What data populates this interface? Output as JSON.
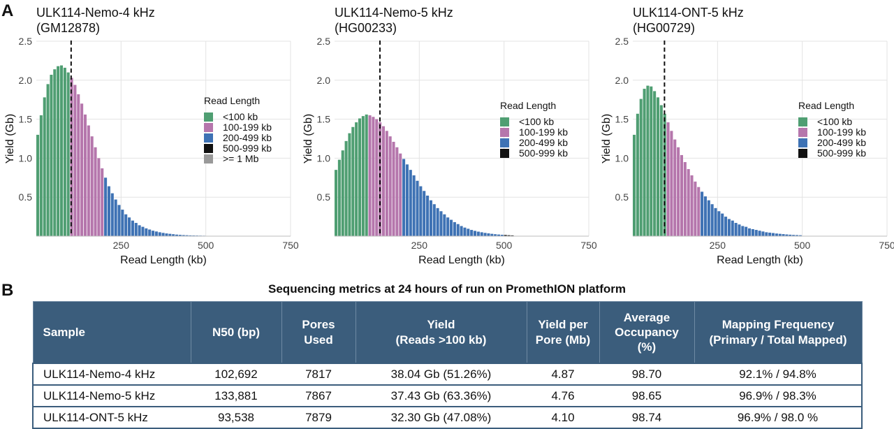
{
  "panel_labels": {
    "a": "A",
    "b": "B"
  },
  "chart_data": [
    {
      "type": "bar",
      "title": "ULK114-Nemo-4 kHz",
      "subtitle": "(GM12878)",
      "xlabel": "Read Length (kb)",
      "ylabel": "Yield (Gb)",
      "xlim": [
        0,
        750
      ],
      "ylim": [
        0,
        2.5
      ],
      "xticks": [
        250,
        500,
        750
      ],
      "yticks": [
        0.5,
        1.0,
        1.5,
        2.0,
        2.5
      ],
      "bin_width_kb": 10,
      "n50_kb": 102.7,
      "legend_title": "Read Length",
      "legend": [
        {
          "label": "<100 kb",
          "color": "#4f9e72"
        },
        {
          "label": "100-199 kb",
          "color": "#b576ac"
        },
        {
          "label": "200-499 kb",
          "color": "#3e72b4"
        },
        {
          "label": "500-999 kb",
          "color": "#111111"
        },
        {
          "label": ">= 1 Mb",
          "color": "#999999"
        }
      ],
      "bins_start_kb": [
        0,
        10,
        20,
        30,
        40,
        50,
        60,
        70,
        80,
        90,
        100,
        110,
        120,
        130,
        140,
        150,
        160,
        170,
        180,
        190,
        200,
        210,
        220,
        230,
        240,
        250,
        260,
        270,
        280,
        290,
        300,
        310,
        320,
        330,
        340,
        350,
        360,
        370,
        380,
        390,
        400,
        410,
        420,
        430,
        440,
        450,
        460,
        470,
        480,
        490
      ],
      "values": [
        1.3,
        1.55,
        1.78,
        1.95,
        2.07,
        2.14,
        2.18,
        2.19,
        2.16,
        2.1,
        2.03,
        1.94,
        1.82,
        1.7,
        1.56,
        1.42,
        1.28,
        1.14,
        1.0,
        0.87,
        0.75,
        0.64,
        0.55,
        0.47,
        0.4,
        0.34,
        0.28,
        0.24,
        0.2,
        0.17,
        0.14,
        0.12,
        0.1,
        0.085,
        0.07,
        0.06,
        0.05,
        0.042,
        0.035,
        0.03,
        0.025,
        0.02,
        0.017,
        0.014,
        0.012,
        0.01,
        0.009,
        0.008,
        0.007,
        0.006
      ]
    },
    {
      "type": "bar",
      "title": "ULK114-Nemo-5 kHz",
      "subtitle": "(HG00233)",
      "xlabel": "Read Length (kb)",
      "ylabel": "Yield (Gb)",
      "xlim": [
        0,
        750
      ],
      "ylim": [
        0,
        2.5
      ],
      "xticks": [
        250,
        500,
        750
      ],
      "yticks": [
        0.5,
        1.0,
        1.5,
        2.0,
        2.5
      ],
      "bin_width_kb": 10,
      "n50_kb": 133.9,
      "legend_title": "Read Length",
      "legend": [
        {
          "label": "<100 kb",
          "color": "#4f9e72"
        },
        {
          "label": "100-199 kb",
          "color": "#b576ac"
        },
        {
          "label": "200-499 kb",
          "color": "#3e72b4"
        },
        {
          "label": "500-999 kb",
          "color": "#111111"
        }
      ],
      "bins_start_kb": [
        0,
        10,
        20,
        30,
        40,
        50,
        60,
        70,
        80,
        90,
        100,
        110,
        120,
        130,
        140,
        150,
        160,
        170,
        180,
        190,
        200,
        210,
        220,
        230,
        240,
        250,
        260,
        270,
        280,
        290,
        300,
        310,
        320,
        330,
        340,
        350,
        360,
        370,
        380,
        390,
        400,
        410,
        420,
        430,
        440,
        450,
        460,
        470,
        480,
        490,
        500,
        510,
        520
      ],
      "values": [
        0.85,
        0.98,
        1.1,
        1.22,
        1.32,
        1.4,
        1.46,
        1.51,
        1.54,
        1.56,
        1.55,
        1.53,
        1.5,
        1.46,
        1.41,
        1.35,
        1.28,
        1.21,
        1.14,
        1.06,
        0.99,
        0.92,
        0.85,
        0.78,
        0.71,
        0.64,
        0.58,
        0.52,
        0.46,
        0.41,
        0.36,
        0.32,
        0.28,
        0.24,
        0.21,
        0.18,
        0.155,
        0.13,
        0.11,
        0.095,
        0.08,
        0.068,
        0.058,
        0.05,
        0.042,
        0.036,
        0.03,
        0.025,
        0.021,
        0.018,
        0.015,
        0.012,
        0.01
      ]
    },
    {
      "type": "bar",
      "title": "ULK114-ONT-5 kHz",
      "subtitle": "(HG00729)",
      "xlabel": "Read Length (kb)",
      "ylabel": "Yield (Gb)",
      "xlim": [
        0,
        750
      ],
      "ylim": [
        0,
        2.5
      ],
      "xticks": [
        250,
        500,
        750
      ],
      "yticks": [
        0.5,
        1.0,
        1.5,
        2.0,
        2.5
      ],
      "bin_width_kb": 10,
      "n50_kb": 93.5,
      "legend_title": "Read Length",
      "legend": [
        {
          "label": "<100 kb",
          "color": "#4f9e72"
        },
        {
          "label": "100-199 kb",
          "color": "#b576ac"
        },
        {
          "label": "200-499 kb",
          "color": "#3e72b4"
        },
        {
          "label": "500-999 kb",
          "color": "#111111"
        }
      ],
      "bins_start_kb": [
        0,
        10,
        20,
        30,
        40,
        50,
        60,
        70,
        80,
        90,
        100,
        110,
        120,
        130,
        140,
        150,
        160,
        170,
        180,
        190,
        200,
        210,
        220,
        230,
        240,
        250,
        260,
        270,
        280,
        290,
        300,
        310,
        320,
        330,
        340,
        350,
        360,
        370,
        380,
        390,
        400,
        410,
        420,
        430,
        440,
        450,
        460,
        470,
        480,
        490
      ],
      "values": [
        1.3,
        1.57,
        1.76,
        1.89,
        1.93,
        1.92,
        1.86,
        1.78,
        1.68,
        1.57,
        1.46,
        1.35,
        1.24,
        1.14,
        1.04,
        0.95,
        0.86,
        0.78,
        0.7,
        0.63,
        0.57,
        0.51,
        0.46,
        0.41,
        0.36,
        0.32,
        0.29,
        0.25,
        0.22,
        0.2,
        0.17,
        0.15,
        0.13,
        0.12,
        0.1,
        0.09,
        0.08,
        0.07,
        0.06,
        0.05,
        0.045,
        0.04,
        0.034,
        0.03,
        0.026,
        0.022,
        0.019,
        0.016,
        0.014,
        0.012
      ]
    }
  ],
  "table": {
    "title": "Sequencing metrics at 24 hours of run on PromethION platform",
    "headers": [
      [
        "Sample"
      ],
      [
        "N50 (bp)"
      ],
      [
        "Pores",
        "Used"
      ],
      [
        "Yield",
        "(Reads >100 kb)"
      ],
      [
        "Yield per",
        "Pore (Mb)"
      ],
      [
        "Average",
        "Occupancy",
        "(%)"
      ],
      [
        "Mapping Frequency",
        "(Primary / Total Mapped)"
      ]
    ],
    "rows": [
      [
        "ULK114-Nemo-4 kHz",
        "102,692",
        "7817",
        "38.04 Gb (51.26%)",
        "4.87",
        "98.70",
        "92.1% / 94.8%"
      ],
      [
        "ULK114-Nemo-5 kHz",
        "133,881",
        "7867",
        "37.43 Gb (63.36%)",
        "4.76",
        "98.65",
        "96.9% / 98.3%"
      ],
      [
        "ULK114-ONT-5 kHz",
        "93,538",
        "7879",
        "32.30 Gb (47.08%)",
        "4.10",
        "98.74",
        "96.9% / 98.0 %"
      ]
    ],
    "colors": {
      "header_bg": "#3b5d7c",
      "header_text": "#ffffff",
      "border": "#3b5d7c"
    }
  }
}
